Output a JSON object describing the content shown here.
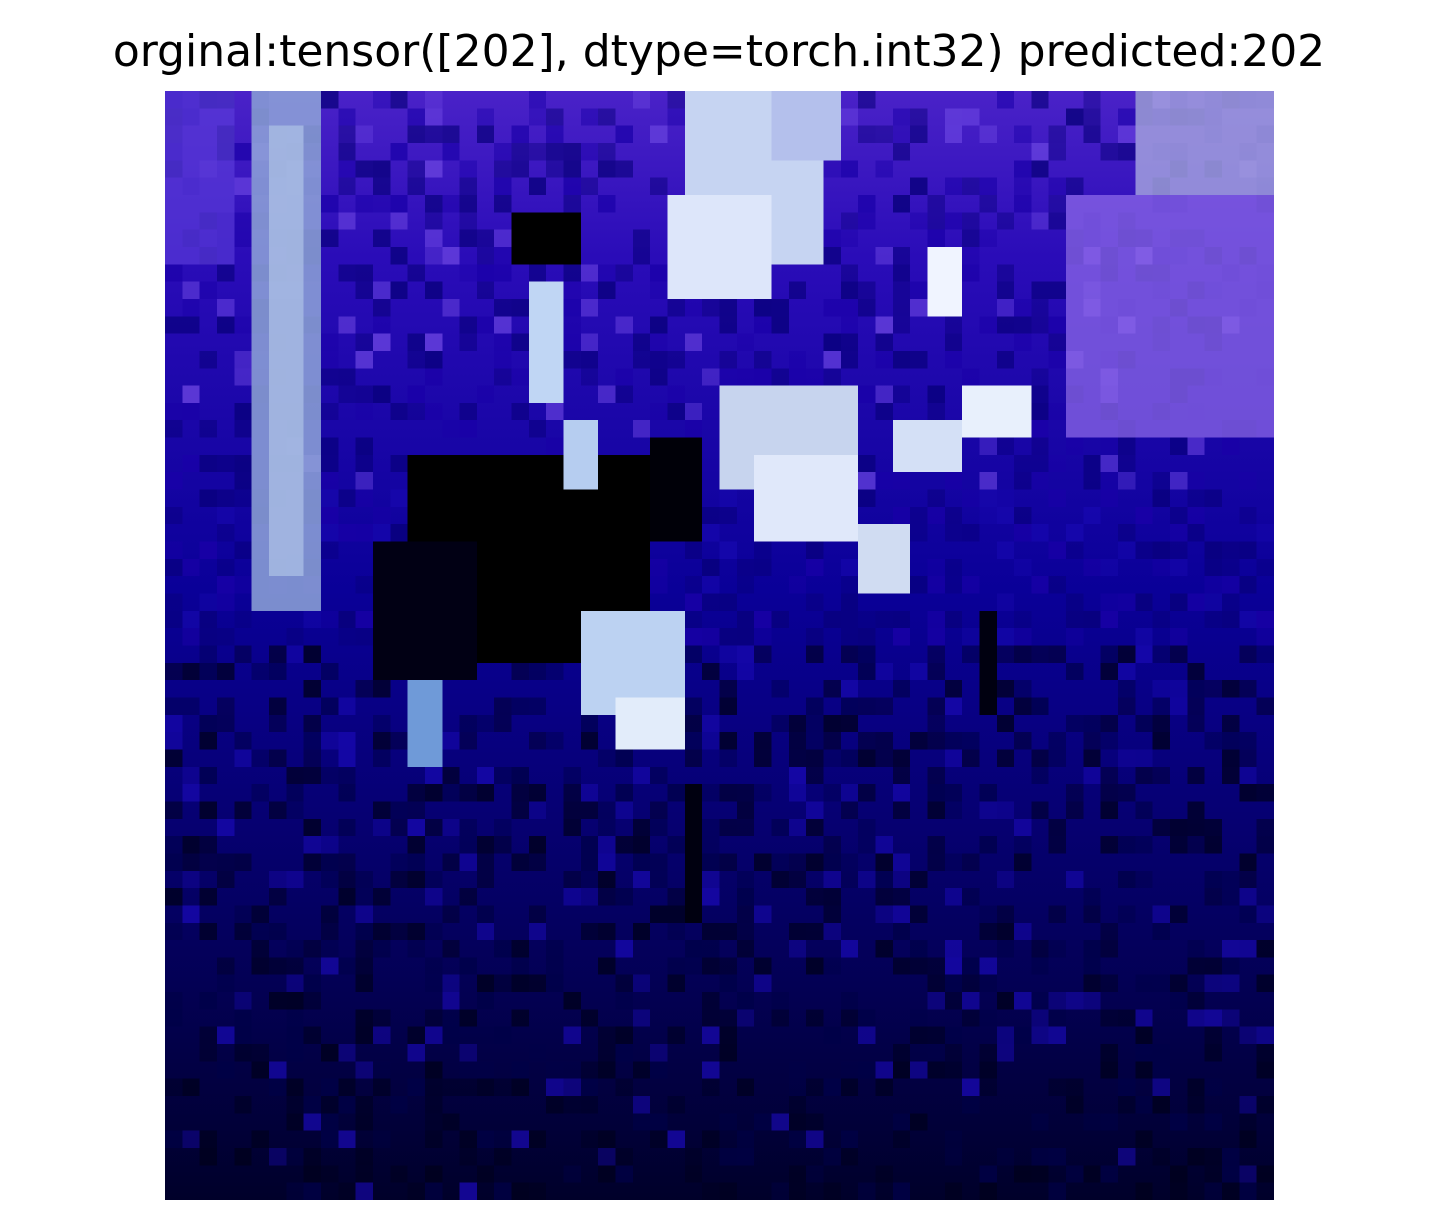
{
  "figure": {
    "title": "orginal:tensor([202], dtype=torch.int32) predicted:202"
  },
  "image": {
    "depiction": "pixelated low-resolution photo",
    "colors": {
      "deep_blue": "#00007a",
      "violet": "#5533dd",
      "pale_blue": "#c8d8f0",
      "black": "#000000"
    }
  }
}
